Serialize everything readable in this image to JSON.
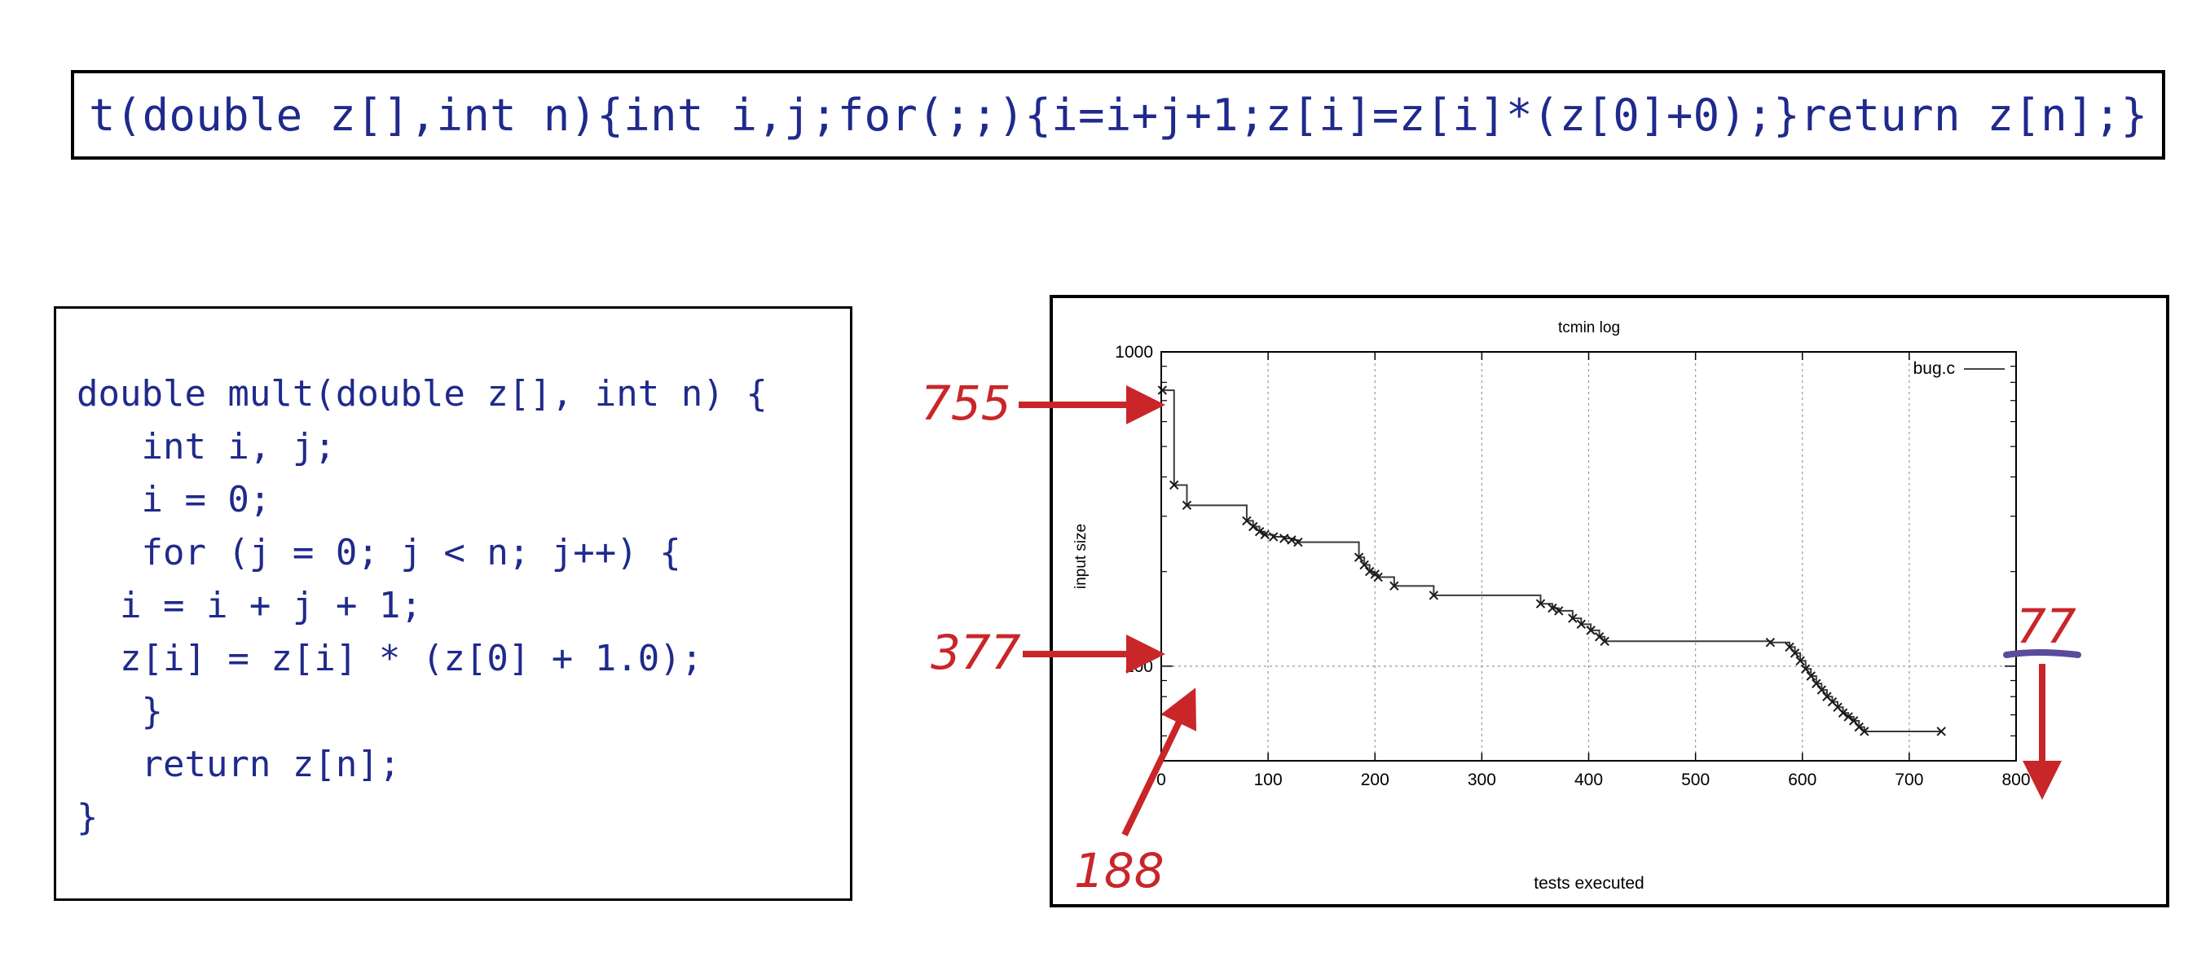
{
  "code_line": "t(double z[],int n){int i,j;for(;;){i=i+j+1;z[i]=z[i]*(z[0]+0);}return z[n];}",
  "code_block": [
    "double mult(double z[], int n) {",
    "   int i, j;",
    "   i = 0;",
    "   for (j = 0; j < n; j++) {",
    "  i = i + j + 1;",
    "  z[i] = z[i] * (z[0] + 1.0);",
    "   }",
    "   return z[n];",
    "}"
  ],
  "annotations": {
    "a755": "755",
    "a377": "377",
    "a188": "188",
    "a77": "77"
  },
  "colors": {
    "code": "#1f2a8c",
    "annotation": "#c9262a"
  },
  "chart_data": {
    "type": "line",
    "title": "tcmin log",
    "xlabel": "tests executed",
    "ylabel": "input size",
    "xlim": [
      0,
      800
    ],
    "ylim": [
      50,
      1000
    ],
    "yscale": "log",
    "xticks": [
      0,
      100,
      200,
      300,
      400,
      500,
      600,
      700,
      800
    ],
    "yticks": [
      100,
      1000
    ],
    "grid": true,
    "legend_position": "top-right",
    "series": [
      {
        "name": "bug.c",
        "line_style": "step",
        "marker": "x",
        "x": [
          1,
          12,
          24,
          80,
          86,
          92,
          97,
          105,
          115,
          122,
          128,
          185,
          190,
          195,
          200,
          203,
          218,
          255,
          355,
          366,
          372,
          385,
          393,
          402,
          410,
          415,
          570,
          588,
          593,
          598,
          603,
          608,
          613,
          618,
          623,
          628,
          633,
          638,
          643,
          648,
          653,
          658,
          730
        ],
        "y": [
          755,
          377,
          325,
          290,
          278,
          268,
          262,
          258,
          255,
          252,
          248,
          222,
          210,
          200,
          196,
          192,
          180,
          168,
          158,
          153,
          150,
          142,
          136,
          130,
          124,
          120,
          119,
          115,
          110,
          104,
          98,
          93,
          88,
          84,
          80,
          77,
          74,
          71,
          69,
          67,
          64,
          62,
          62
        ]
      }
    ]
  }
}
